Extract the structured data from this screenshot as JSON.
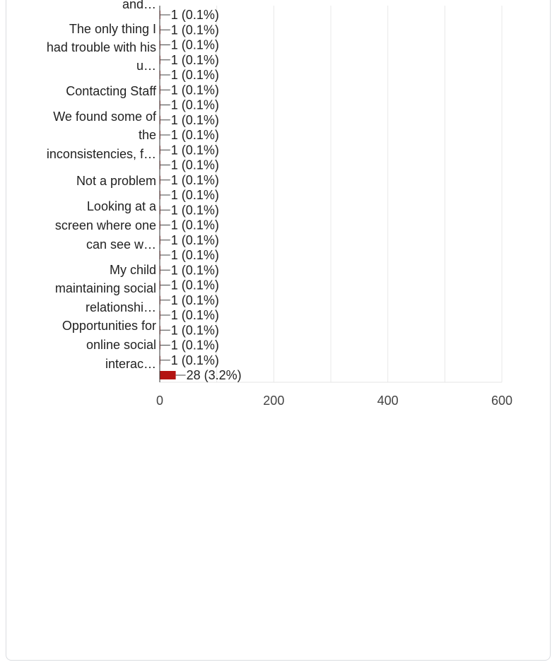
{
  "chart_data": {
    "type": "bar",
    "orientation": "horizontal",
    "category_labels": [
      {
        "lines": [
          "and…"
        ]
      },
      {
        "lines": [
          "The only thing I",
          "had trouble with his",
          "u…"
        ]
      },
      {
        "lines": [
          "Contacting Staff"
        ]
      },
      {
        "lines": [
          "We found some of",
          "the",
          "inconsistencies, f…"
        ]
      },
      {
        "lines": [
          "Not a problem"
        ]
      },
      {
        "lines": [
          "Looking at a",
          "screen where one",
          "can see w…"
        ]
      },
      {
        "lines": [
          "My child",
          "maintaining social",
          "relationshi…"
        ]
      },
      {
        "lines": [
          "Opportunities for",
          "online social",
          "interac…"
        ]
      }
    ],
    "bars": [
      {
        "value": 1,
        "label": "1 (0.1%)"
      },
      {
        "value": 1,
        "label": "1 (0.1%)"
      },
      {
        "value": 1,
        "label": "1 (0.1%)"
      },
      {
        "value": 1,
        "label": "1 (0.1%)"
      },
      {
        "value": 1,
        "label": "1 (0.1%)"
      },
      {
        "value": 1,
        "label": "1 (0.1%)"
      },
      {
        "value": 1,
        "label": "1 (0.1%)"
      },
      {
        "value": 1,
        "label": "1 (0.1%)"
      },
      {
        "value": 1,
        "label": "1 (0.1%)"
      },
      {
        "value": 1,
        "label": "1 (0.1%)"
      },
      {
        "value": 1,
        "label": "1 (0.1%)"
      },
      {
        "value": 1,
        "label": "1 (0.1%)"
      },
      {
        "value": 1,
        "label": "1 (0.1%)"
      },
      {
        "value": 1,
        "label": "1 (0.1%)"
      },
      {
        "value": 1,
        "label": "1 (0.1%)"
      },
      {
        "value": 1,
        "label": "1 (0.1%)"
      },
      {
        "value": 1,
        "label": "1 (0.1%)"
      },
      {
        "value": 1,
        "label": "1 (0.1%)"
      },
      {
        "value": 1,
        "label": "1 (0.1%)"
      },
      {
        "value": 1,
        "label": "1 (0.1%)"
      },
      {
        "value": 1,
        "label": "1 (0.1%)"
      },
      {
        "value": 1,
        "label": "1 (0.1%)"
      },
      {
        "value": 1,
        "label": "1 (0.1%)"
      },
      {
        "value": 1,
        "label": "1 (0.1%)"
      },
      {
        "value": 28,
        "label": "28 (3.2%)"
      }
    ],
    "xlim": [
      0,
      600
    ],
    "xticks": [
      0,
      200,
      400,
      600
    ],
    "xtick_labels": [
      "0",
      "200",
      "400",
      "600"
    ],
    "xlabel": "",
    "ylabel": "",
    "grid": true,
    "bar_color": "#b31412"
  }
}
